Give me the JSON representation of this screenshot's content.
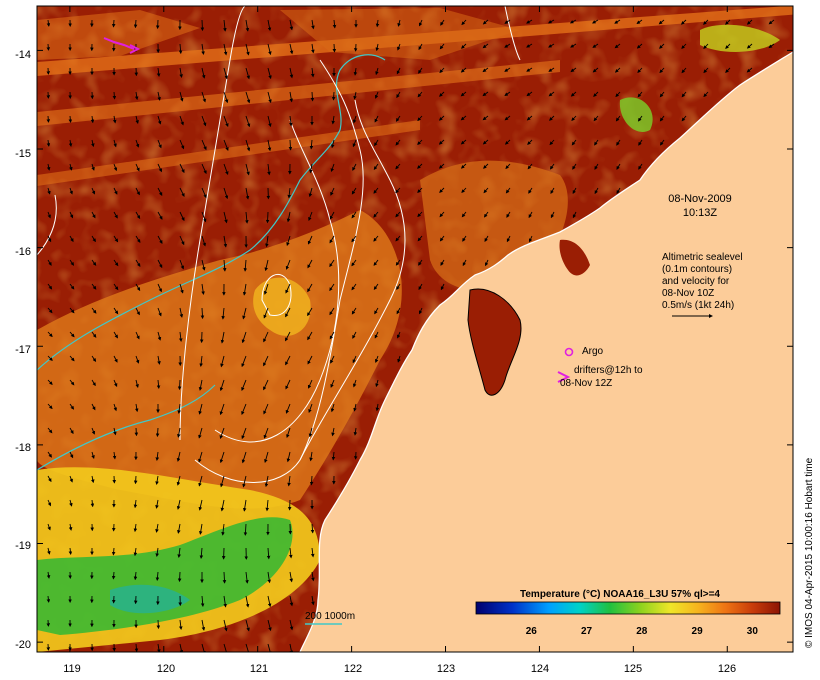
{
  "map": {
    "axes": {
      "lon_ticks": [
        "119",
        "120",
        "121",
        "122",
        "123",
        "124",
        "125",
        "126"
      ],
      "lat_ticks": [
        "-14",
        "-15",
        "-16",
        "-17",
        "-18",
        "-19",
        "-20"
      ],
      "lon_range": [
        118.65,
        126.7
      ],
      "lat_range": [
        -20.1,
        -13.55
      ]
    },
    "annotations": {
      "date": "08-Nov-2009",
      "time": "10:13Z",
      "altimetry_lines": [
        "Altimetric sealevel",
        "(0.1m contours)",
        "and velocity for",
        "08-Nov 10Z",
        "0.5m/s (1kt 24h)"
      ],
      "argo_label": "Argo",
      "drifters_lines": [
        "drifters@12h to",
        "08-Nov 12Z"
      ],
      "depth_legend": "200  1000m"
    },
    "colorbar": {
      "title": "Temperature (°C) NOAA16_L3U 57% ql>=4",
      "ticks": [
        "26",
        "27",
        "28",
        "29",
        "30"
      ],
      "range": [
        25,
        30.5
      ]
    },
    "credit": "© IMOS 04-Apr-2015 10:00:16 Hobart time",
    "colors": {
      "land": "#fccc99",
      "sst_warm": "#9a1e04",
      "sst_orange": "#e8761a",
      "sst_yellow": "#f6d41a",
      "sst_green": "#2fb52f",
      "isobath": "#40c8c8",
      "argo": "#e020e0"
    }
  }
}
